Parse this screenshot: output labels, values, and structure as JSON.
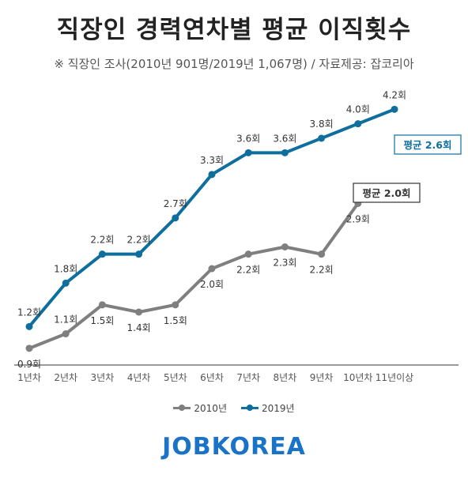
{
  "title": "직장인 경력연차별 평균 이직횟수",
  "subtitle": "※ 직장인 조사(2010년 901명/2019년 1,067명) / 자료제공: 잡코리아",
  "brand": "JOBKOREA",
  "colors": {
    "series_2010": "#7f7f7f",
    "series_2019": "#0e6f9e",
    "brand": "#1a73c7",
    "axis": "#9a9a9a"
  },
  "chart_data": {
    "type": "line",
    "title": "직장인 경력연차별 평균 이직횟수",
    "categories": [
      "1년차",
      "2년차",
      "3년차",
      "4년차",
      "5년차",
      "6년차",
      "7년차",
      "8년차",
      "9년차",
      "10년차",
      "11년이상"
    ],
    "ylim": [
      0.8,
      4.4
    ],
    "grid": false,
    "legend_position": "bottom",
    "series": [
      {
        "name": "2010년",
        "values": [
          0.9,
          1.1,
          1.5,
          1.4,
          1.5,
          2.0,
          2.2,
          2.3,
          2.2,
          2.9,
          null
        ],
        "labels": [
          "0.9회",
          "1.1회",
          "1.5회",
          "1.4회",
          "1.5회",
          "2.0회",
          "2.2회",
          "2.3회",
          "2.2회",
          "2.9회",
          null
        ],
        "average_label": "평균 2.0회"
      },
      {
        "name": "2019년",
        "values": [
          1.2,
          1.8,
          2.2,
          2.2,
          2.7,
          3.3,
          3.6,
          3.6,
          3.8,
          4.0,
          4.2
        ],
        "labels": [
          "1.2회",
          "1.8회",
          "2.2회",
          "2.2회",
          "2.7회",
          "3.3회",
          "3.6회",
          "3.6회",
          "3.8회",
          "4.0회",
          "4.2회"
        ],
        "average_label": "평균 2.6회"
      }
    ]
  }
}
